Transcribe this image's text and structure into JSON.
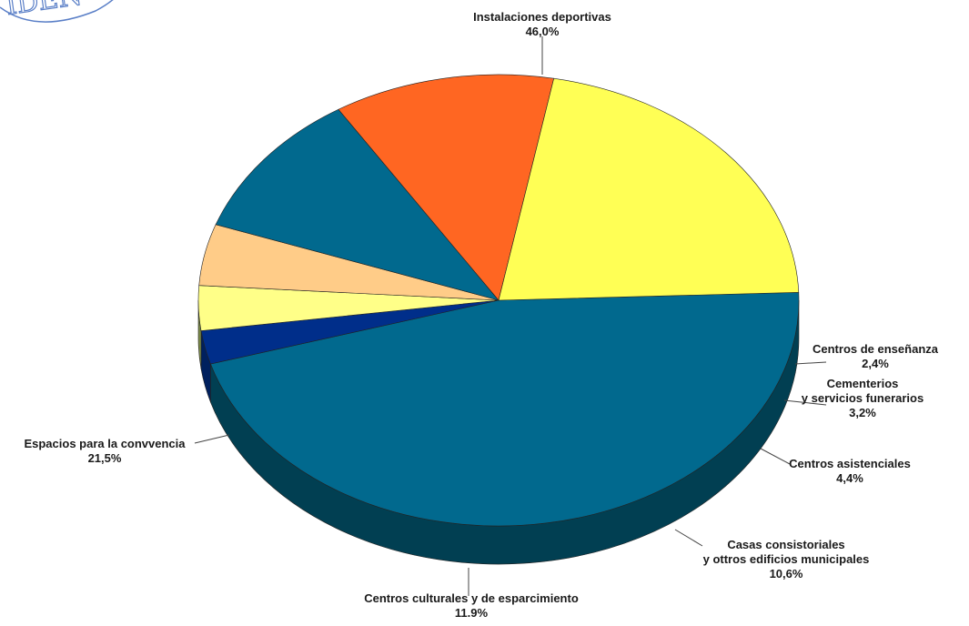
{
  "chart_data": {
    "type": "pie",
    "style": "3d",
    "slices": [
      {
        "key": "sports",
        "label_lines": [
          "Instalaciones deportivas"
        ],
        "value_label": "46,0%",
        "value": 46.0,
        "color": "#01698E",
        "side_color": "#013F52"
      },
      {
        "key": "teach",
        "label_lines": [
          "Centros de enseñanza"
        ],
        "value_label": "2,4%",
        "value": 2.4,
        "color": "#002E8A",
        "side_color": "#00205E"
      },
      {
        "key": "cem",
        "label_lines": [
          "Cementerios",
          "y servicios funerarios"
        ],
        "value_label": "3,2%",
        "value": 3.2,
        "color": "#FFFF88",
        "side_color": "#7C8B48"
      },
      {
        "key": "asist",
        "label_lines": [
          "Centros asistenciales"
        ],
        "value_label": "4,4%",
        "value": 4.4,
        "color": "#FFCC88",
        "side_color": "#8A5A3A"
      },
      {
        "key": "casas",
        "label_lines": [
          "Casas consistoriales",
          "y ottros edificios municipales"
        ],
        "value_label": "10,6%",
        "value": 10.6,
        "color": "#01698E",
        "side_color": "#013F48"
      },
      {
        "key": "cult",
        "label_lines": [
          "Centros culturales y de esparcimiento"
        ],
        "value_label": "11.9%",
        "value": 11.9,
        "color": "#FF6622",
        "side_color": "#A3300E"
      },
      {
        "key": "conv",
        "label_lines": [
          "Espacios para la convvencia"
        ],
        "value_label": "21,5%",
        "value": 21.5,
        "color": "#FFFF55",
        "side_color": "#7C8B48"
      }
    ]
  },
  "stamp": {
    "text": "IDEN"
  }
}
